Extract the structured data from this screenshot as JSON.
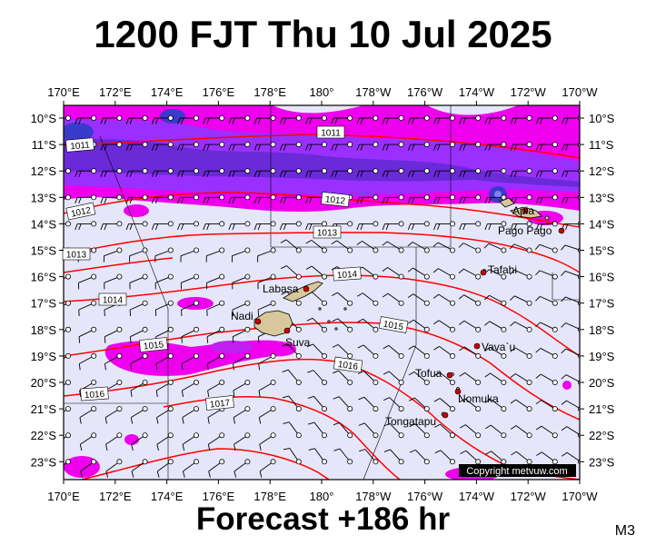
{
  "title": "1200 FJT Thu 10 Jul 2025",
  "footer": "Forecast +186 hr",
  "model_label": "M3",
  "copyright": "Copyright metvuw.com",
  "colors": {
    "background": "#e6e6fa",
    "rain_light": "#ee00ee",
    "rain_mid": "#9a30ff",
    "rain_heavy": "#3a3acc",
    "isobar": "#ff0000",
    "land": "#d7c79a"
  },
  "lon_labels": [
    "170°E",
    "172°E",
    "174°E",
    "176°E",
    "178°E",
    "180°",
    "178°W",
    "176°W",
    "174°W",
    "172°W",
    "170°W"
  ],
  "lat_labels": [
    "10°S",
    "11°S",
    "12°S",
    "13°S",
    "14°S",
    "15°S",
    "16°S",
    "17°S",
    "18°S",
    "19°S",
    "20°S",
    "21°S",
    "22°S",
    "23°S"
  ],
  "isobars": [
    {
      "label": "1011"
    },
    {
      "label": "1012"
    },
    {
      "label": "1012"
    },
    {
      "label": "1013"
    },
    {
      "label": "1013"
    },
    {
      "label": "1014"
    },
    {
      "label": "1014"
    },
    {
      "label": "1015"
    },
    {
      "label": "1015"
    },
    {
      "label": "1016"
    },
    {
      "label": "1016"
    },
    {
      "label": "1017"
    },
    {
      "label": "1011"
    }
  ],
  "places": [
    {
      "name": "Apia"
    },
    {
      "name": "Pago Pago"
    },
    {
      "name": "Tafahi"
    },
    {
      "name": "Labasa"
    },
    {
      "name": "Nadi"
    },
    {
      "name": "Suva"
    },
    {
      "name": "Vava`u"
    },
    {
      "name": "Tofua"
    },
    {
      "name": "Nomuka"
    },
    {
      "name": "Tongatapu"
    }
  ]
}
